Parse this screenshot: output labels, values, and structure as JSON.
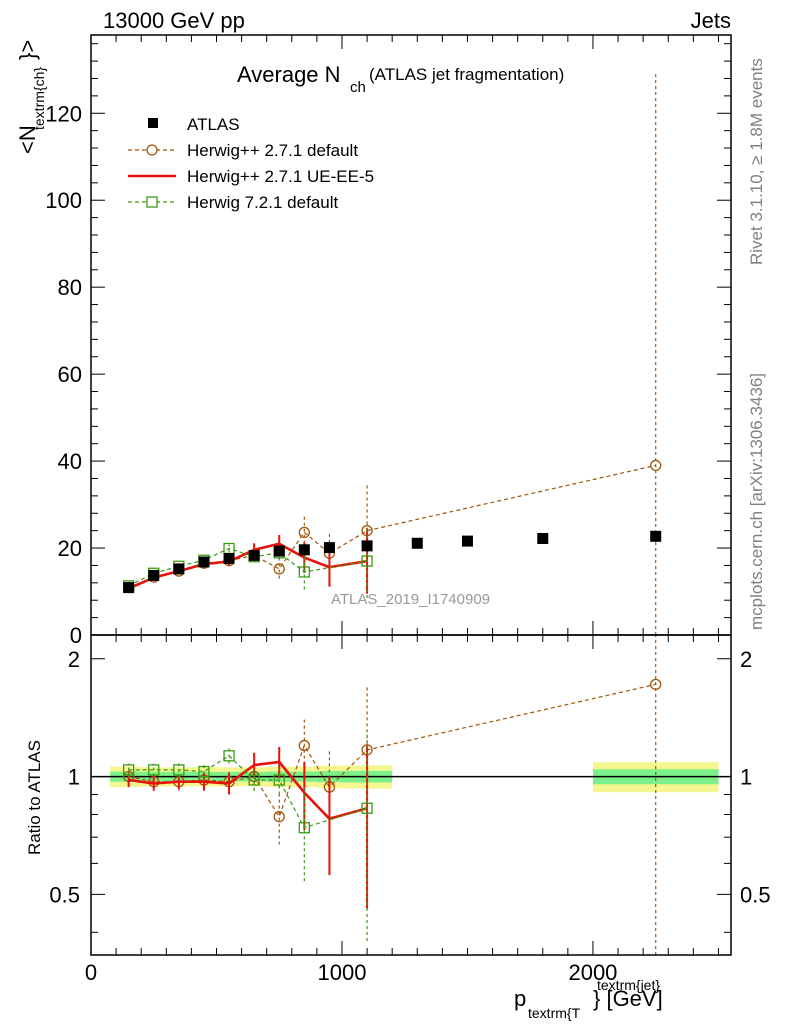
{
  "header": {
    "energy_label": "13000 GeV pp",
    "category_label": "Jets"
  },
  "side_labels": {
    "rivet": "Rivet 3.1.10, ≥ 1.8M events",
    "mcplots": "mcplots.cern.ch [arXiv:1306.3436]"
  },
  "watermark": "ATLAS_2019_I1740909",
  "colors": {
    "atlas": "#000000",
    "herwigpp_default": "#a0550a",
    "herwigpp_ueee5": "#e8120c",
    "herwig7": "#3c9a12",
    "band_inner": "#7cf08a",
    "band_outer": "#f4f690"
  },
  "chart_data": [
    {
      "type": "scatter",
      "title_main": "Average N",
      "title_sub": "ch",
      "title_suffix": "(ATLAS jet fragmentation)",
      "ylabel": "<N",
      "ylabel_sub": "textrm{ch}",
      "ylabel_close": "}>",
      "xlim": [
        0,
        2550
      ],
      "ylim": [
        0,
        138
      ],
      "x_ticks": [
        0,
        1000,
        2000
      ],
      "y_ticks": [
        0,
        20,
        40,
        60,
        80,
        100,
        120
      ],
      "legend_position": "top-left",
      "series": [
        {
          "name": "ATLAS",
          "style": "data",
          "x": [
            150,
            250,
            350,
            450,
            550,
            650,
            750,
            850,
            950,
            1100,
            1300,
            1500,
            1800,
            2250
          ],
          "y": [
            10.9,
            13.7,
            15.2,
            16.8,
            17.6,
            18.3,
            19.3,
            19.6,
            20.1,
            20.5,
            21.1,
            21.6,
            22.2,
            22.7
          ],
          "err": [
            0.4,
            0.4,
            0.4,
            0.5,
            0.5,
            0.5,
            0.6,
            0.6,
            0.7,
            0.7,
            0.8,
            0.8,
            0.9,
            1.0
          ]
        },
        {
          "name": "Herwig++ 2.7.1 default",
          "style": "circle-dashed",
          "x": [
            150,
            250,
            350,
            450,
            550,
            650,
            750,
            850,
            950,
            1100,
            2250
          ],
          "y": [
            10.9,
            13.3,
            14.7,
            16.5,
            17.1,
            18.3,
            15.2,
            23.6,
            18.8,
            24.0,
            39.0
          ],
          "err": [
            0.6,
            0.7,
            0.8,
            0.8,
            1.0,
            1.5,
            2.2,
            4.0,
            4.5,
            11.0,
            90.0
          ]
        },
        {
          "name": "Herwig++ 2.7.1 UE-EE-5",
          "style": "solid",
          "x": [
            150,
            250,
            350,
            450,
            550,
            650,
            750,
            850,
            950,
            1100
          ],
          "y": [
            10.7,
            13.2,
            14.7,
            16.3,
            16.9,
            19.6,
            21.0,
            17.8,
            15.6,
            17.0
          ],
          "err": [
            0.5,
            0.6,
            0.7,
            0.8,
            1.0,
            1.5,
            2.0,
            3.5,
            4.5,
            7.5
          ]
        },
        {
          "name": "Herwig 7.2.1 default",
          "style": "square-dashed",
          "x": [
            150,
            250,
            350,
            450,
            550,
            650,
            750,
            850,
            950,
            1100
          ],
          "y": [
            11.3,
            14.2,
            15.8,
            17.2,
            19.9,
            18.0,
            18.9,
            14.5,
            null,
            17.0
          ],
          "err": [
            0.5,
            0.6,
            0.7,
            0.8,
            0.9,
            1.2,
            1.6,
            4.0,
            null,
            8.5
          ]
        }
      ]
    },
    {
      "type": "scatter",
      "ylabel": "Ratio to ATLAS",
      "xlabel": "p",
      "xlabel_sub": "textrm{T",
      "xlabel_sup": "textrm{jet}",
      "xlabel_close": "} [GeV]",
      "xlim": [
        0,
        2550
      ],
      "ylim": [
        0.35,
        2.3
      ],
      "x_ticks": [
        0,
        1000,
        2000
      ],
      "x_tick_labels": [
        "0",
        "1000",
        "2000"
      ],
      "y_ticks": [
        0.5,
        1,
        2
      ],
      "y_tick_labels": [
        "0.5",
        "1",
        "2"
      ],
      "band": {
        "x": [
          [
            100,
            200
          ],
          [
            200,
            300
          ],
          [
            300,
            400
          ],
          [
            400,
            500
          ],
          [
            500,
            600
          ],
          [
            600,
            700
          ],
          [
            700,
            800
          ],
          [
            800,
            900
          ],
          [
            900,
            1000
          ],
          [
            1000,
            1200
          ],
          [
            2000,
            2500
          ]
        ],
        "inner": [
          0.03,
          0.028,
          0.028,
          0.028,
          0.028,
          0.028,
          0.03,
          0.03,
          0.033,
          0.034,
          0.044
        ],
        "outer": [
          0.06,
          0.056,
          0.056,
          0.056,
          0.056,
          0.056,
          0.06,
          0.06,
          0.066,
          0.068,
          0.088
        ]
      },
      "series": [
        {
          "name": "Herwig++ 2.7.1 default",
          "style": "circle-dashed",
          "x": [
            150,
            250,
            350,
            450,
            550,
            650,
            750,
            850,
            950,
            1100,
            2250
          ],
          "y": [
            1.0,
            0.97,
            0.97,
            0.98,
            0.97,
            1.0,
            0.79,
            1.2,
            0.94,
            1.17,
            1.72
          ],
          "err": [
            0.05,
            0.05,
            0.05,
            0.05,
            0.06,
            0.08,
            0.12,
            0.2,
            0.22,
            0.53,
            4.0
          ]
        },
        {
          "name": "Herwig++ 2.7.1 UE-EE-5",
          "style": "solid",
          "x": [
            150,
            250,
            350,
            450,
            550,
            650,
            750,
            850,
            950,
            1100
          ],
          "y": [
            0.98,
            0.96,
            0.97,
            0.97,
            0.96,
            1.07,
            1.09,
            0.91,
            0.78,
            0.83
          ],
          "err": [
            0.04,
            0.04,
            0.04,
            0.05,
            0.06,
            0.08,
            0.1,
            0.18,
            0.22,
            0.37
          ]
        },
        {
          "name": "Herwig 7.2.1 default",
          "style": "square-dashed",
          "x": [
            150,
            250,
            350,
            450,
            550,
            650,
            750,
            850,
            950,
            1100
          ],
          "y": [
            1.04,
            1.04,
            1.04,
            1.03,
            1.13,
            0.98,
            0.98,
            0.74,
            null,
            0.83
          ],
          "err": [
            0.04,
            0.04,
            0.05,
            0.05,
            0.05,
            0.06,
            0.08,
            0.2,
            null,
            0.45
          ]
        }
      ]
    }
  ]
}
